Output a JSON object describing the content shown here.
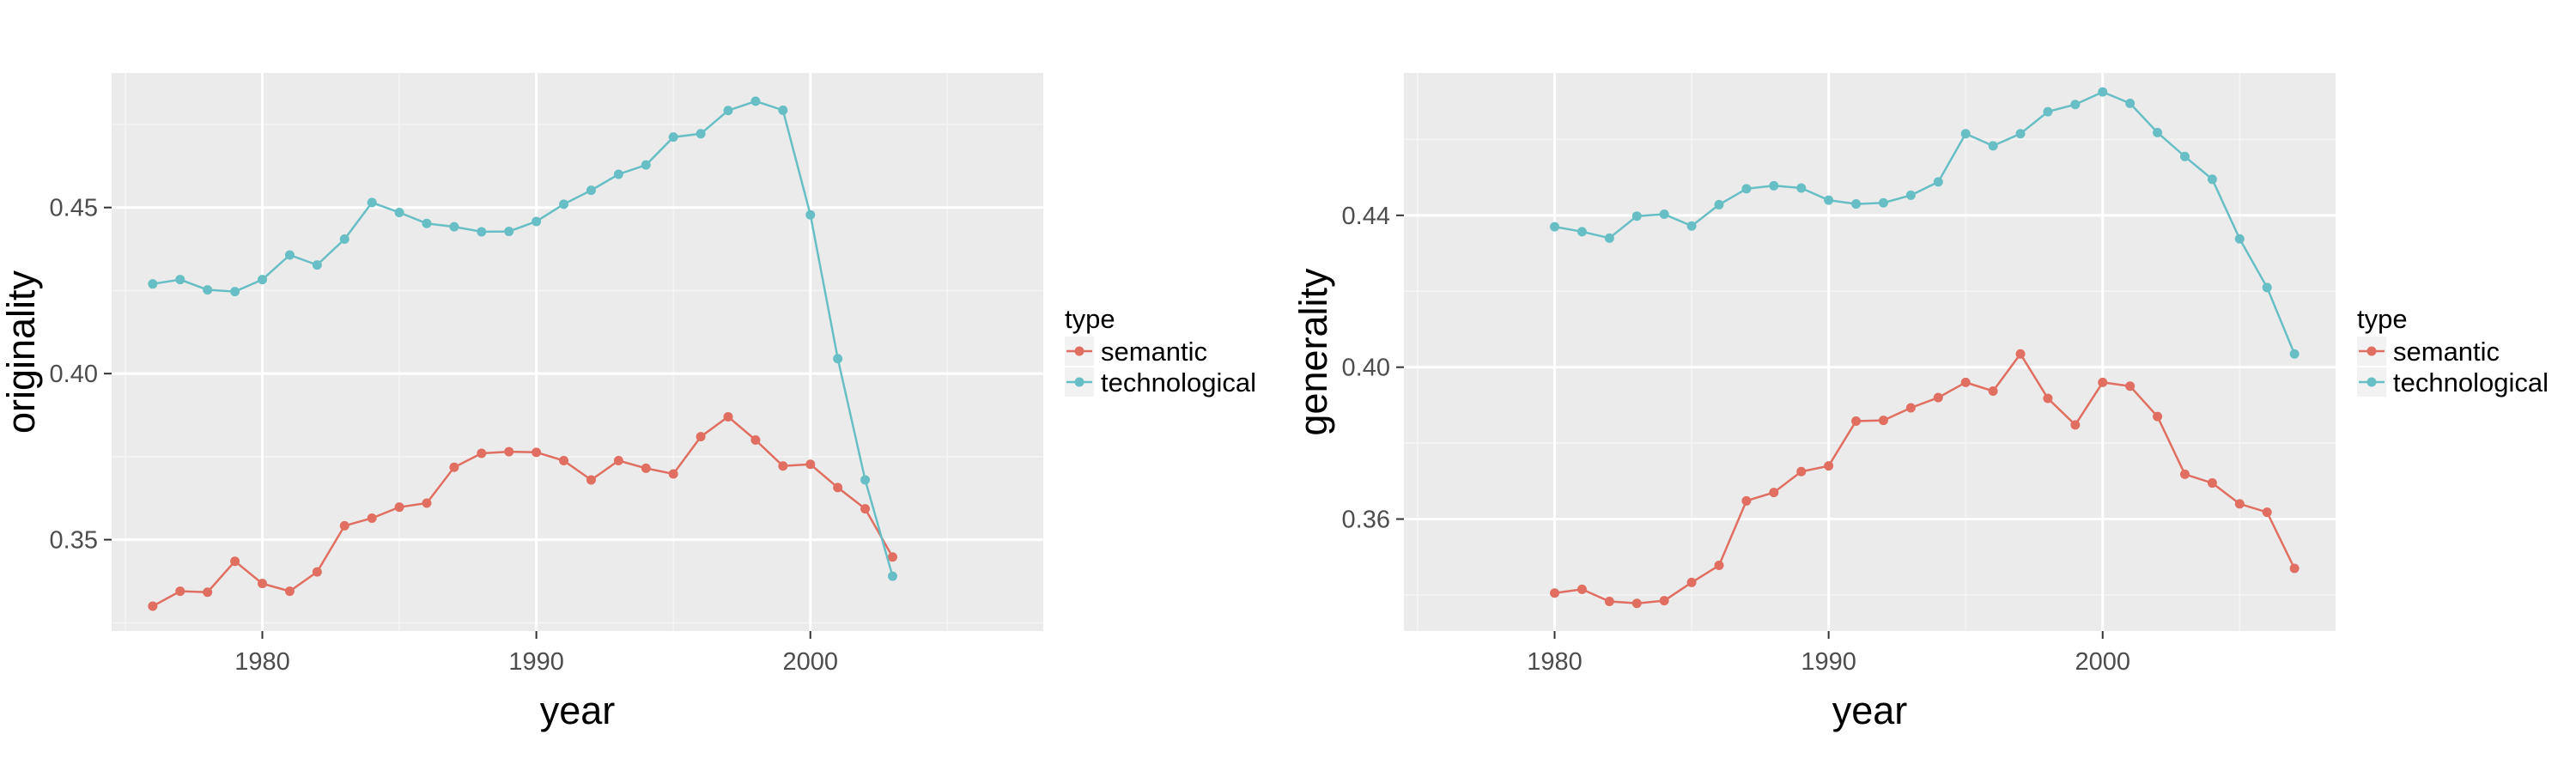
{
  "colors": {
    "semantic": "#E06F61",
    "technological": "#67BFC5",
    "panel": "#EBEBEB",
    "grid_major": "#FFFFFF",
    "grid_minor": "#F5F5F5",
    "tick_text": "#4D4D4D"
  },
  "chart_data": [
    {
      "type": "line",
      "xlabel": "year",
      "ylabel": "originality",
      "xlim": [
        1974.5,
        2008.5
      ],
      "ylim": [
        0.3225,
        0.4905
      ],
      "xticks": [
        1980,
        1990,
        2000
      ],
      "yticks": [
        0.35,
        0.4,
        0.45
      ],
      "ytick_labels": [
        "0.35",
        "0.40",
        "0.45"
      ],
      "grid": true,
      "legend": {
        "title": "type",
        "position": "right"
      },
      "series": [
        {
          "name": "semantic",
          "x": [
            1976,
            1977,
            1978,
            1979,
            1980,
            1981,
            1982,
            1983,
            1984,
            1985,
            1986,
            1987,
            1988,
            1989,
            1990,
            1991,
            1992,
            1993,
            1994,
            1995,
            1996,
            1997,
            1998,
            1999,
            2000,
            2001,
            2002,
            2003
          ],
          "y": [
            0.33,
            0.3345,
            0.3342,
            0.3435,
            0.3368,
            0.3345,
            0.3403,
            0.3542,
            0.3565,
            0.3598,
            0.361,
            0.3718,
            0.376,
            0.3765,
            0.3763,
            0.3738,
            0.368,
            0.3738,
            0.3715,
            0.3698,
            0.381,
            0.387,
            0.38,
            0.3722,
            0.3727,
            0.3657,
            0.3593,
            0.3448
          ]
        },
        {
          "name": "technological",
          "x": [
            1976,
            1977,
            1978,
            1979,
            1980,
            1981,
            1982,
            1983,
            1984,
            1985,
            1986,
            1987,
            1988,
            1989,
            1990,
            1991,
            1992,
            1993,
            1994,
            1995,
            1996,
            1997,
            1998,
            1999,
            2000,
            2001,
            2002,
            2003
          ],
          "y": [
            0.427,
            0.4283,
            0.4252,
            0.4247,
            0.4283,
            0.4357,
            0.4327,
            0.4405,
            0.4515,
            0.4485,
            0.4452,
            0.4442,
            0.4427,
            0.4428,
            0.4458,
            0.451,
            0.4552,
            0.46,
            0.4628,
            0.4712,
            0.4722,
            0.4792,
            0.482,
            0.4793,
            0.4478,
            0.4045,
            0.368,
            0.339
          ]
        }
      ]
    },
    {
      "type": "line",
      "xlabel": "year",
      "ylabel": "generality",
      "xlim": [
        1974.5,
        2008.5
      ],
      "ylim": [
        0.3305,
        0.4775
      ],
      "xticks": [
        1980,
        1990,
        2000
      ],
      "yticks": [
        0.36,
        0.4,
        0.44
      ],
      "ytick_labels": [
        "0.36",
        "0.40",
        "0.44"
      ],
      "grid": true,
      "legend": {
        "title": "type",
        "position": "right"
      },
      "series": [
        {
          "name": "semantic",
          "x": [
            1980,
            1981,
            1982,
            1983,
            1984,
            1985,
            1986,
            1987,
            1988,
            1989,
            1990,
            1991,
            1992,
            1993,
            1994,
            1995,
            1996,
            1997,
            1998,
            1999,
            2000,
            2001,
            2002,
            2003,
            2004,
            2005,
            2006,
            2007
          ],
          "y": [
            0.3405,
            0.3415,
            0.3383,
            0.3378,
            0.3385,
            0.3433,
            0.3478,
            0.3648,
            0.367,
            0.3725,
            0.374,
            0.3858,
            0.386,
            0.3893,
            0.392,
            0.396,
            0.3937,
            0.4035,
            0.3918,
            0.3848,
            0.396,
            0.395,
            0.387,
            0.3718,
            0.3695,
            0.364,
            0.3618,
            0.347
          ]
        },
        {
          "name": "technological",
          "x": [
            1980,
            1981,
            1982,
            1983,
            1984,
            1985,
            1986,
            1987,
            1988,
            1989,
            1990,
            1991,
            1992,
            1993,
            1994,
            1995,
            1996,
            1997,
            1998,
            1999,
            2000,
            2001,
            2002,
            2003,
            2004,
            2005,
            2006,
            2007
          ],
          "y": [
            0.437,
            0.4357,
            0.434,
            0.4398,
            0.4403,
            0.4372,
            0.4428,
            0.447,
            0.4478,
            0.4472,
            0.444,
            0.443,
            0.4433,
            0.4453,
            0.4488,
            0.4615,
            0.4583,
            0.4615,
            0.4673,
            0.4692,
            0.4725,
            0.4695,
            0.4618,
            0.4555,
            0.4495,
            0.4338,
            0.421,
            0.4035
          ]
        }
      ]
    }
  ]
}
